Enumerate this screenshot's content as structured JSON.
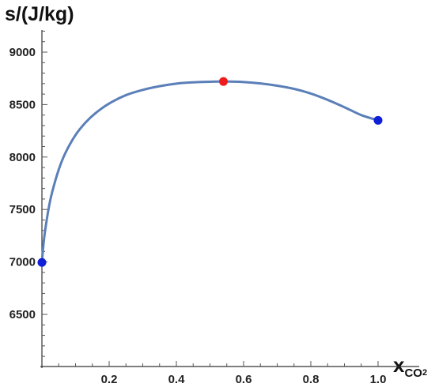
{
  "chart_data": {
    "type": "line",
    "ylabel": "s/(J/kg)",
    "xlabel": {
      "main": "x",
      "sub": "CO",
      "sub2": "2"
    },
    "xlim": [
      0,
      1
    ],
    "ylim": [
      6000,
      9300
    ],
    "xticks": [
      0.2,
      0.4,
      0.6,
      0.8,
      1.0
    ],
    "xtick_labels": [
      "0.2",
      "0.4",
      "0.6",
      "0.8",
      "1.0"
    ],
    "yticks": [
      6500,
      7000,
      7500,
      8000,
      8500,
      9000
    ],
    "ytick_labels": [
      "6500",
      "7000",
      "7500",
      "8000",
      "8500",
      "9000"
    ],
    "series": [
      {
        "color": "#5b7fb8",
        "x": [
          0,
          0.005,
          0.01,
          0.02,
          0.03,
          0.05,
          0.07,
          0.1,
          0.13,
          0.16,
          0.2,
          0.25,
          0.3,
          0.35,
          0.4,
          0.45,
          0.5,
          0.54,
          0.6,
          0.65,
          0.7,
          0.75,
          0.8,
          0.85,
          0.9,
          0.95,
          1.0
        ],
        "y": [
          6995,
          7180,
          7310,
          7510,
          7660,
          7880,
          8040,
          8210,
          8330,
          8420,
          8510,
          8590,
          8640,
          8675,
          8700,
          8712,
          8718,
          8720,
          8715,
          8702,
          8680,
          8650,
          8605,
          8545,
          8475,
          8400,
          8350
        ]
      }
    ],
    "markers": [
      {
        "x": 0,
        "y": 6995,
        "color": "#1020d8"
      },
      {
        "x": 0.54,
        "y": 8720,
        "color": "#ee1c1c"
      },
      {
        "x": 1.0,
        "y": 8350,
        "color": "#1020d8"
      }
    ]
  }
}
